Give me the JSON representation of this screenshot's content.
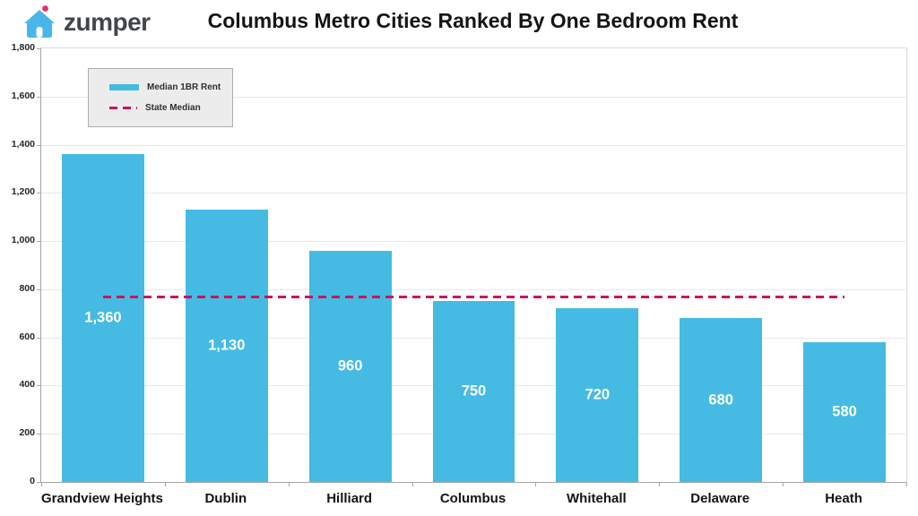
{
  "header": {
    "brand": "zumper",
    "title": "Columbus Metro Cities Ranked By One Bedroom Rent"
  },
  "colors": {
    "bar": "#45bbe3",
    "median": "#c9155f",
    "logo-blue": "#49b6e9",
    "logo-dot": "#e62e6b",
    "brand-text": "#41464b",
    "grid": "#e9e9e9",
    "axis": "#a6a6a6",
    "plot-border": "#dcdcdc",
    "legend-bg": "#ececec",
    "legend-border": "#adadad"
  },
  "chart_data": {
    "type": "bar",
    "title": "Columbus Metro Cities Ranked By One Bedroom Rent",
    "categories": [
      "Grandview Heights",
      "Dublin",
      "Hilliard",
      "Columbus",
      "Whitehall",
      "Delaware",
      "Heath"
    ],
    "values": [
      1360,
      1130,
      960,
      750,
      720,
      680,
      580
    ],
    "bar_labels": [
      "1,360",
      "1,130",
      "960",
      "750",
      "720",
      "680",
      "580"
    ],
    "series_label": "Median 1BR Rent",
    "state_median": {
      "label": "State Median",
      "value": 770
    },
    "ylim": [
      0,
      1800
    ],
    "yticks": [
      0,
      200,
      400,
      600,
      800,
      1000,
      1200,
      1400,
      1600,
      1800
    ],
    "ytick_labels": [
      "0",
      "200",
      "400",
      "600",
      "800",
      "1,000",
      "1,200",
      "1,400",
      "1,600",
      "1,800"
    ],
    "grid": true,
    "legend_position": "top-left",
    "legend": [
      {
        "label": "Median 1BR Rent",
        "type": "bar-swatch"
      },
      {
        "label": "State Median",
        "type": "dashed-line"
      }
    ]
  }
}
